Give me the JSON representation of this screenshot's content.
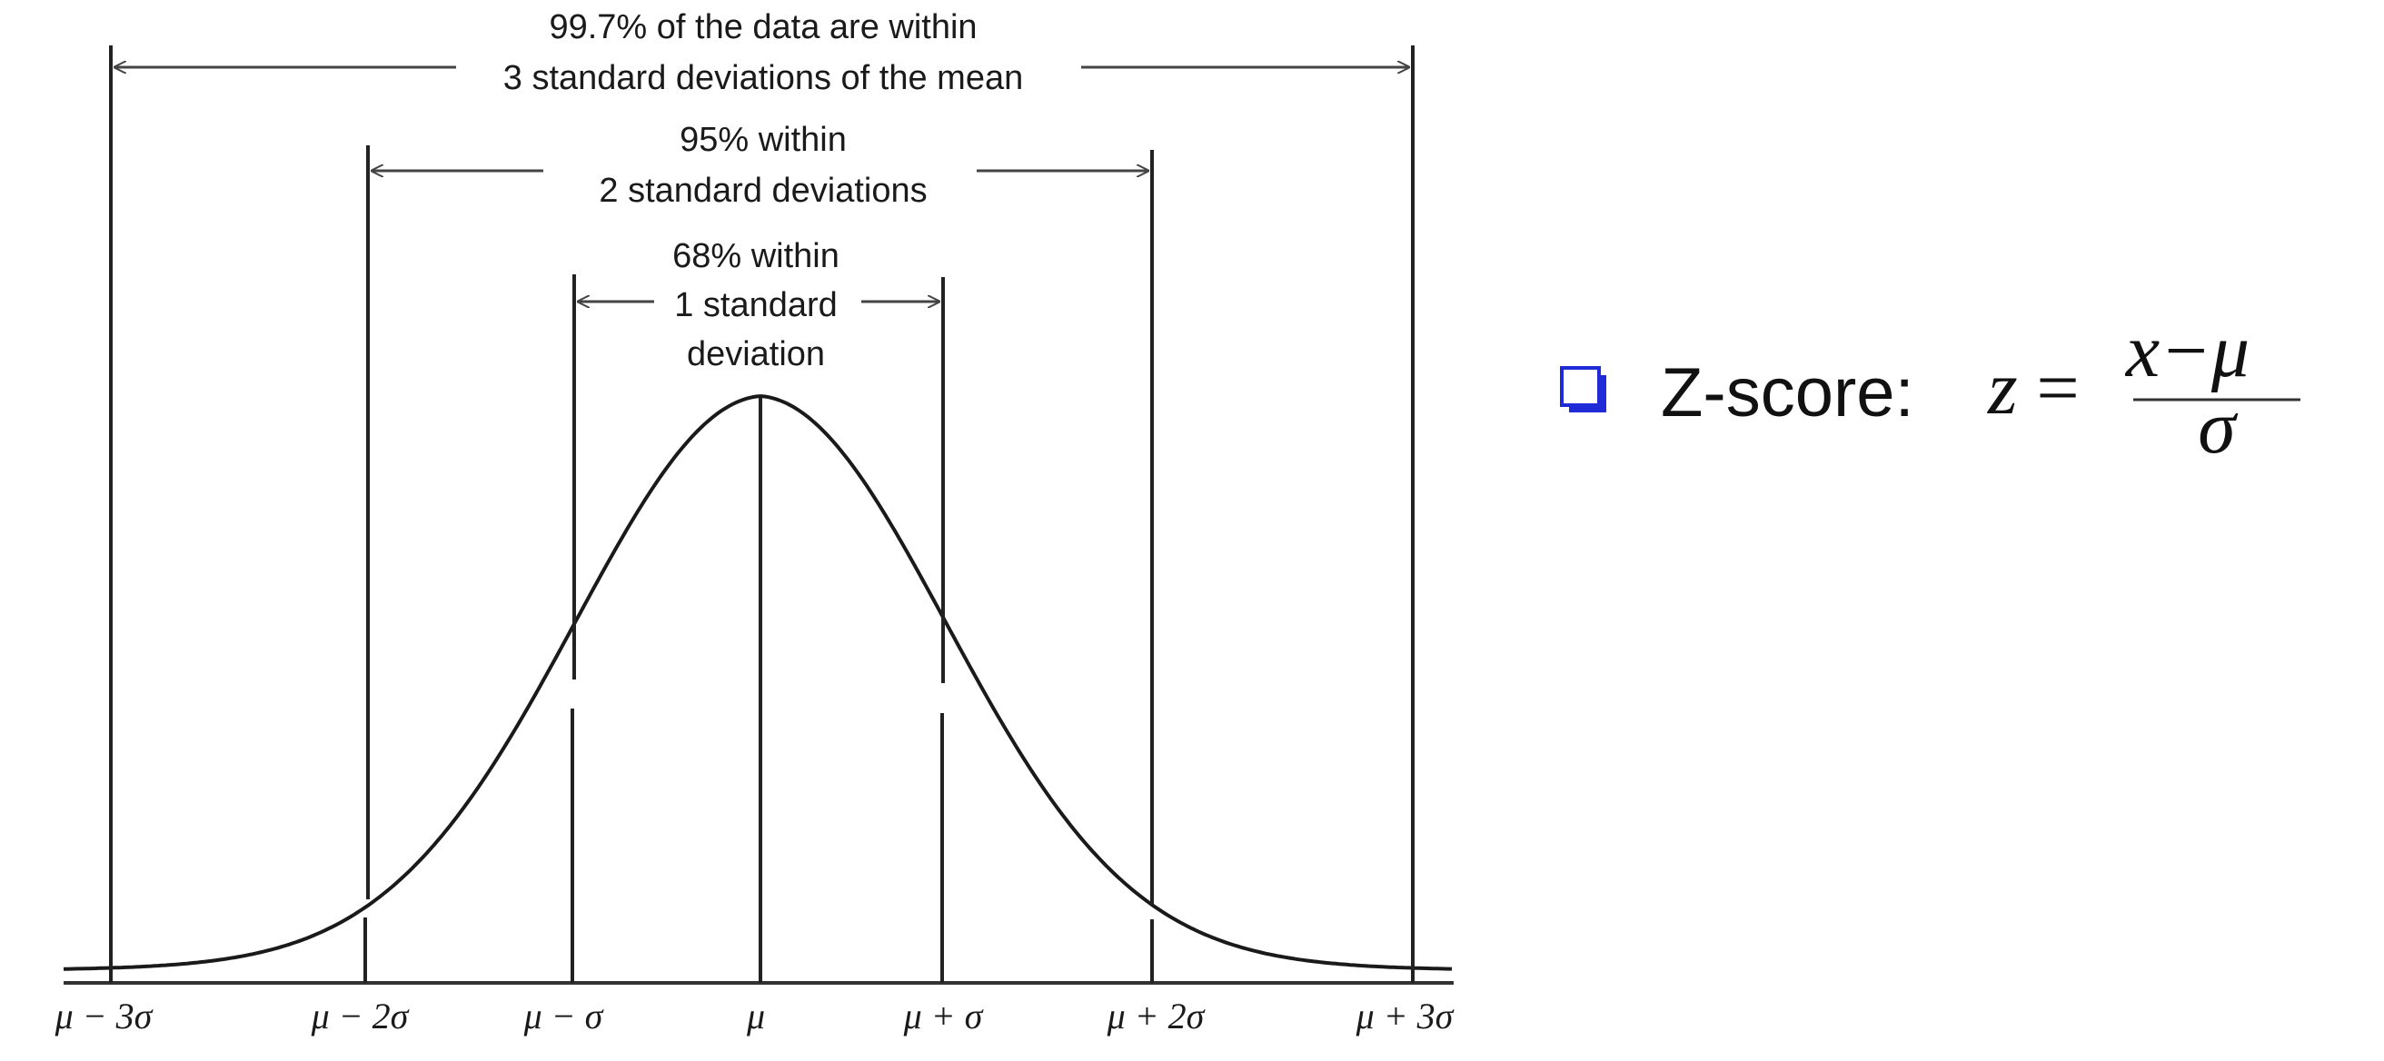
{
  "diagram": {
    "span_3": {
      "line1": "99.7% of the data are within",
      "line2": "3 standard deviations of the mean"
    },
    "span_2": {
      "line1": "95% within",
      "line2": "2 standard deviations"
    },
    "span_1": {
      "line1": "68% within",
      "line2": "1 standard",
      "line3": "deviation"
    },
    "tick_labels": [
      "μ − 3σ",
      "μ − 2σ",
      "μ − σ",
      "μ",
      "μ + σ",
      "μ + 2σ",
      "μ + 3σ"
    ]
  },
  "zscore": {
    "label": "Z-score:",
    "lhs": "z",
    "equals": "=",
    "numerator": "x−μ",
    "denominator": "σ",
    "bullet_color": "#1f2bd6"
  }
}
